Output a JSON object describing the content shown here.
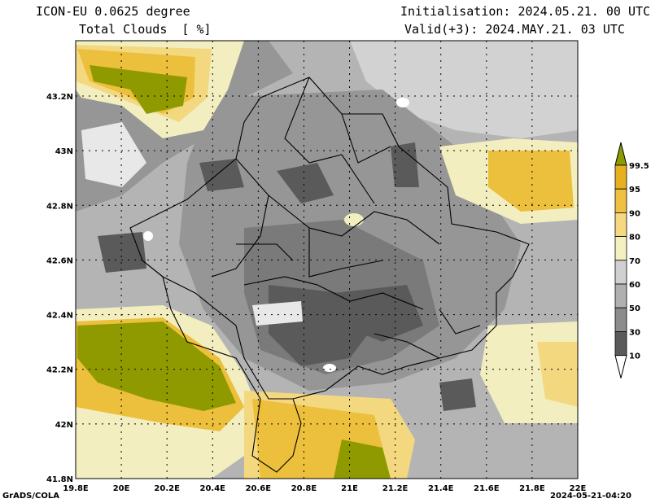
{
  "header": {
    "model": "ICON-EU 0.0625 degree",
    "field": "Total Clouds  [ %]",
    "init": "Initialisation: 2024.05.21. 00 UTC",
    "valid": "Valid(+3): 2024.MAY.21. 03 UTC"
  },
  "footer": {
    "credit": "GrADS/COLA",
    "timestamp": "2024-05-21-04:20"
  },
  "axes": {
    "lon_ticks": [
      "19.8E",
      "20E",
      "20.2E",
      "20.4E",
      "20.6E",
      "20.8E",
      "21E",
      "21.2E",
      "21.4E",
      "21.6E",
      "21.8E",
      "22E"
    ],
    "lat_ticks": [
      "43.2N",
      "43N",
      "42.8N",
      "42.6N",
      "42.4N",
      "42.2N",
      "42N",
      "41.8N"
    ]
  },
  "colorbar": {
    "levels": [
      "99.5",
      "95",
      "90",
      "80",
      "70",
      "60",
      "50",
      "30",
      "10"
    ],
    "colors": [
      "#8c9c00",
      "#e6b020",
      "#f0c040",
      "#f5d880",
      "#f5f0c0",
      "#d0d0d0",
      "#b0b0b0",
      "#8c8c8c",
      "#5a5a5a",
      "#ffffff"
    ]
  },
  "palette": {
    "c10": "#5a5a5a",
    "c30": "#7a7a7a",
    "c50": "#969696",
    "c60": "#b4b4b4",
    "c70": "#d2d2d2",
    "c80": "#f2eec0",
    "c90": "#f3d880",
    "c95": "#ecbf3c",
    "c99": "#8f9a00",
    "clear": "#e8e8e8"
  }
}
